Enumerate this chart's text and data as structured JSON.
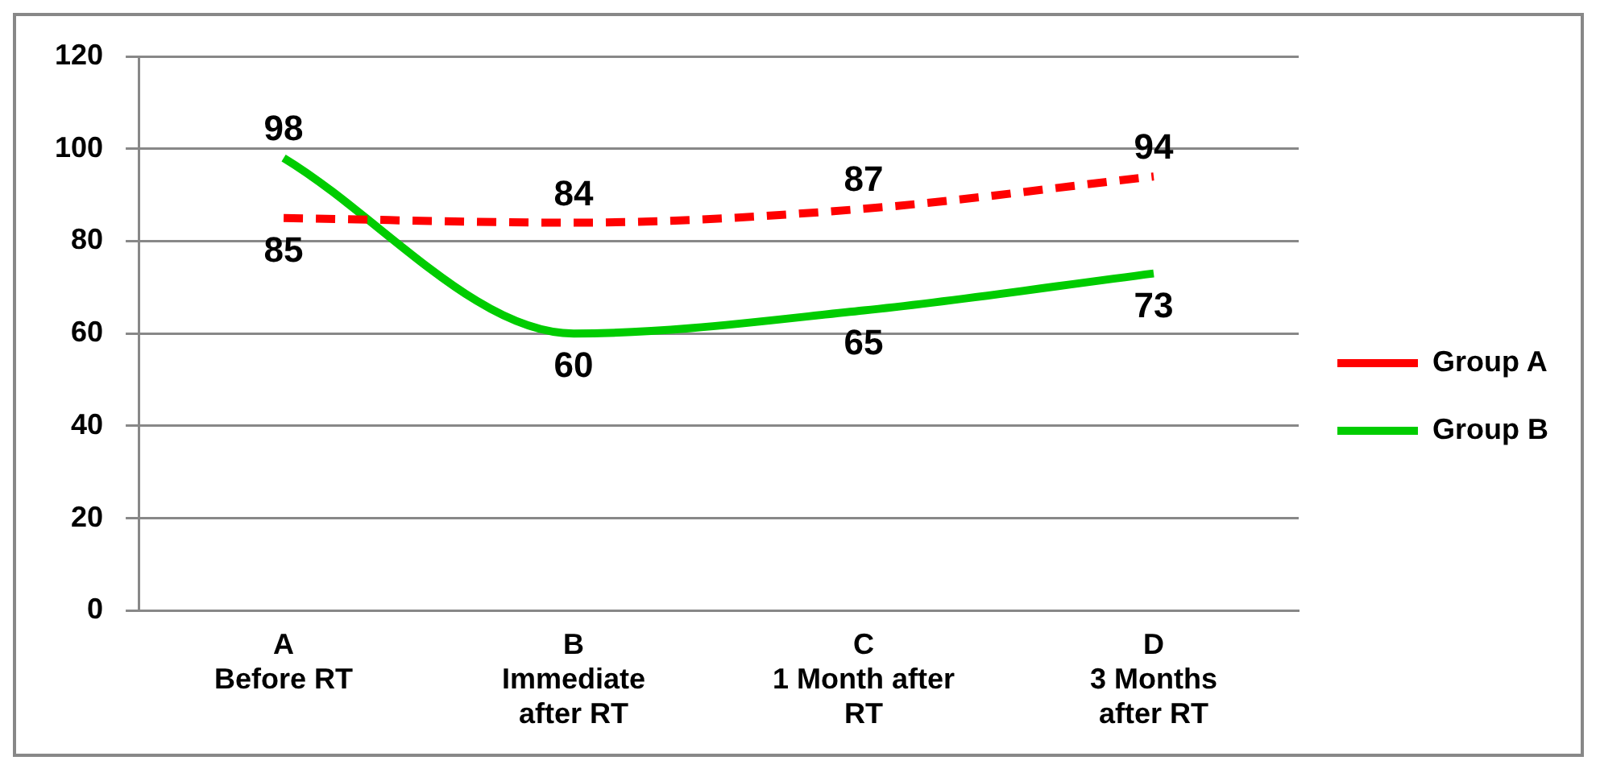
{
  "chart_data": {
    "type": "line",
    "categories": [
      "A\nBefore RT",
      "B\nImmediate\nafter RT",
      "C\n1 Month after\nRT",
      "D\n3 Months\nafter RT"
    ],
    "series": [
      {
        "name": "Group A",
        "color": "#ff0000",
        "values": [
          85,
          84,
          87,
          94
        ],
        "line_style": "dashed"
      },
      {
        "name": "Group B",
        "color": "#00cc00",
        "values": [
          98,
          60,
          65,
          73
        ],
        "line_style": "solid"
      }
    ],
    "ylim": [
      0,
      120
    ],
    "yticks": [
      0,
      20,
      40,
      60,
      80,
      100,
      120
    ],
    "grid": "y",
    "legend": "right",
    "marker": "none",
    "data_labels": true
  }
}
